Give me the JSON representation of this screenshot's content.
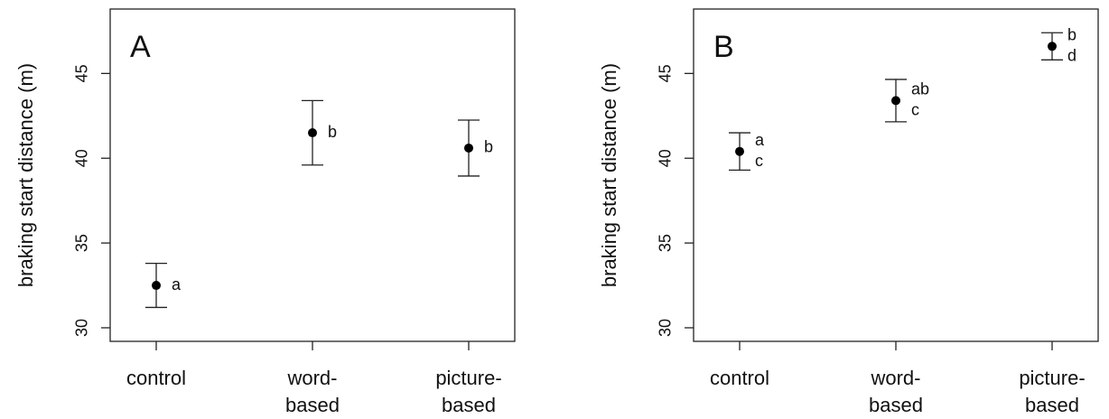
{
  "chart_data": [
    {
      "type": "errorbar",
      "panel_label": "A",
      "ylabel": "braking start distance (m)",
      "categories": [
        "control",
        "word-\nbased",
        "picture-\nbased"
      ],
      "values": [
        32.5,
        41.5,
        40.6
      ],
      "errors": [
        1.3,
        1.9,
        1.65
      ],
      "annotations": [
        [
          "a"
        ],
        [
          "b"
        ],
        [
          "b"
        ]
      ],
      "ylim": [
        29.2,
        48.8
      ],
      "yticks": [
        30,
        35,
        40,
        45
      ],
      "color": "#000000"
    },
    {
      "type": "errorbar",
      "panel_label": "B",
      "ylabel": "braking start distance (m)",
      "categories": [
        "control",
        "word-\nbased",
        "picture-\nbased"
      ],
      "values": [
        40.4,
        43.4,
        46.6
      ],
      "errors": [
        1.1,
        1.25,
        0.8
      ],
      "annotations": [
        [
          "a",
          "c"
        ],
        [
          "ab",
          "c"
        ],
        [
          "b",
          "d"
        ]
      ],
      "ylim": [
        29.2,
        48.8
      ],
      "yticks": [
        30,
        35,
        40,
        45
      ],
      "color": "#000000"
    }
  ]
}
